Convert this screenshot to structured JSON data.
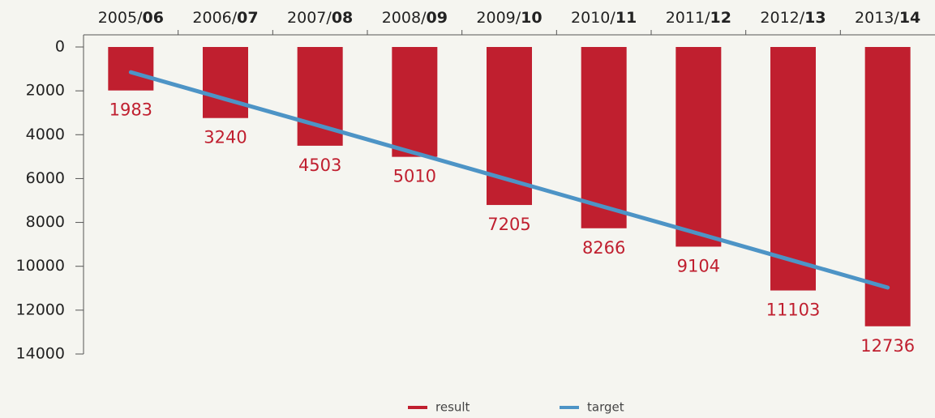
{
  "chart_data": {
    "type": "bar",
    "categories": [
      "2005/06",
      "2006/07",
      "2007/08",
      "2008/09",
      "2009/10",
      "2010/11",
      "2011/12",
      "2012/13",
      "2013/14"
    ],
    "series": [
      {
        "name": "result",
        "type": "bar",
        "color": "#c01f2f",
        "values": [
          1983,
          3240,
          4503,
          5010,
          7205,
          8266,
          9104,
          11103,
          12736
        ]
      },
      {
        "name": "target",
        "type": "line",
        "color": "#4d94c6",
        "values": [
          1150,
          2380,
          3600,
          4830,
          6060,
          7290,
          8510,
          9740,
          10970
        ]
      }
    ],
    "ylim": [
      0,
      14000
    ],
    "yticks": [
      0,
      2000,
      4000,
      6000,
      8000,
      10000,
      12000,
      14000
    ],
    "y_inverted": true,
    "x_axis_position": "top",
    "grid": false,
    "legend": "bottom"
  }
}
